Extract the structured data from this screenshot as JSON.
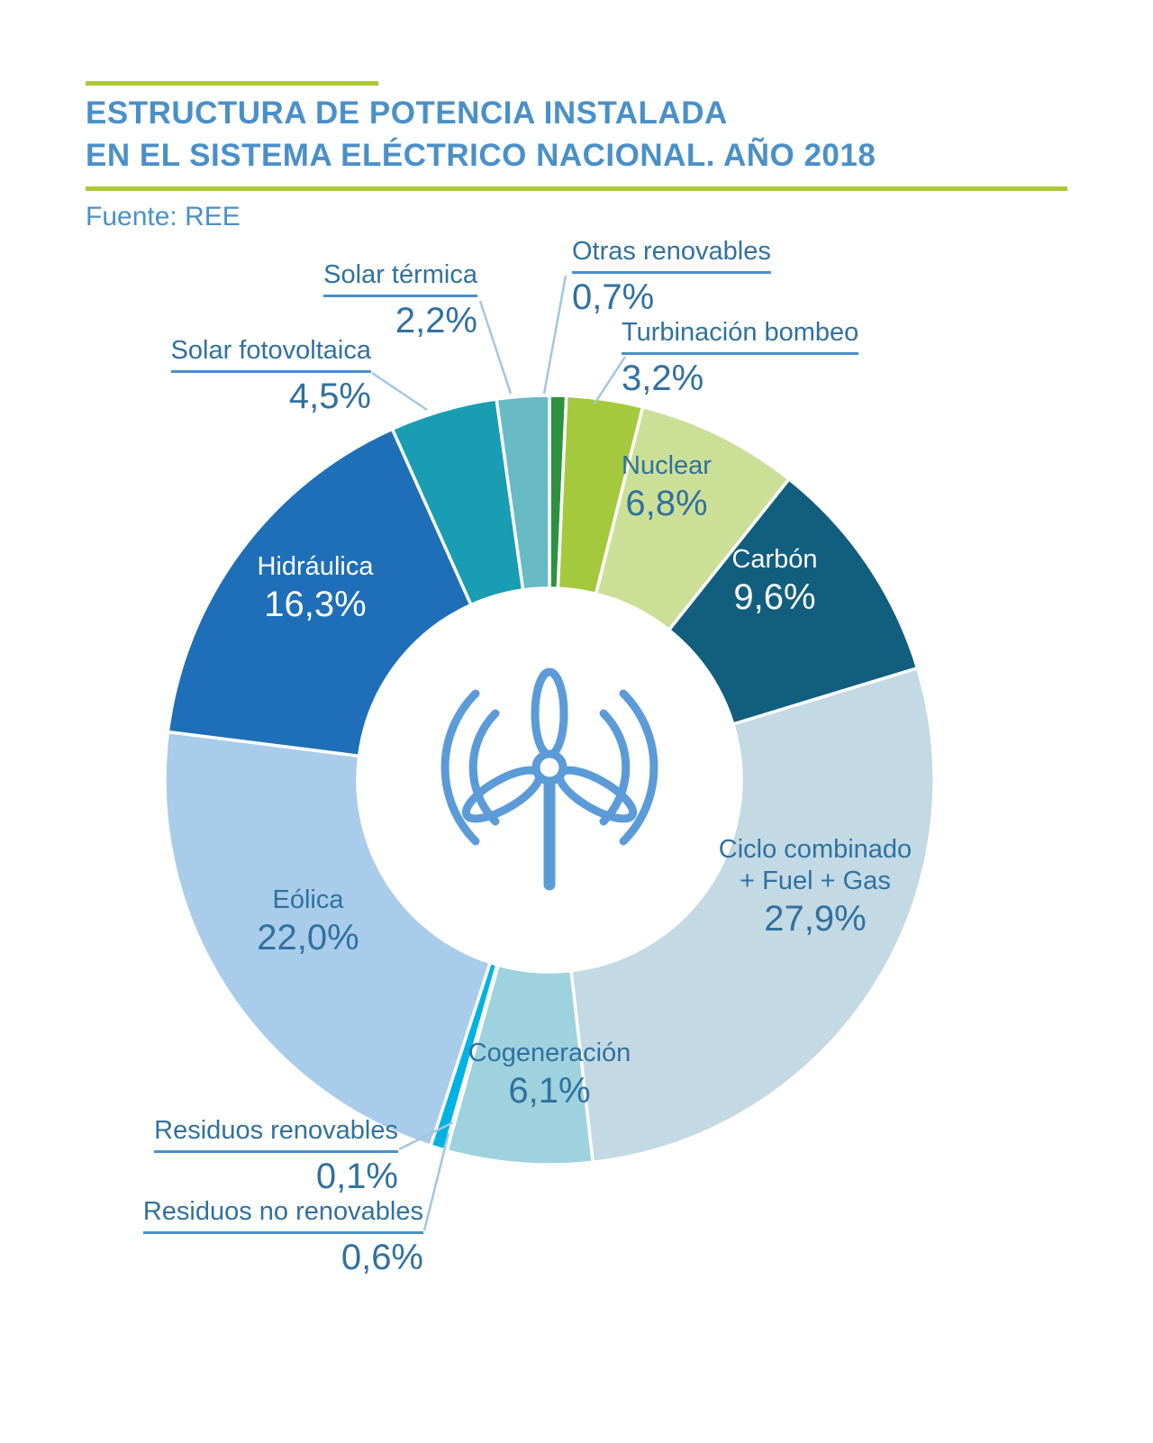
{
  "header": {
    "title_line1": "ESTRUCTURA DE POTENCIA INSTALADA",
    "title_line2": "EN EL SISTEMA ELÉCTRICO NACIONAL. AÑO 2018",
    "source": "Fuente: REE",
    "accent_color": "#abc838",
    "title_color": "#4a90c8"
  },
  "chart_data": {
    "type": "pie",
    "subtype": "donut",
    "title": "Estructura de potencia instalada en el sistema eléctrico nacional. Año 2018",
    "source": "Fuente: REE",
    "start": "top",
    "direction": "clockwise",
    "inner_radius_pct": 50,
    "label_text_color": "#30719f",
    "gap_color": "#ffffff",
    "segments": [
      {
        "label": "Otras renovables",
        "value": 0.7,
        "pct_label": "0,7%",
        "color": "#2e9140",
        "label_placement": "outside"
      },
      {
        "label": "Turbinación bombeo",
        "value": 3.2,
        "pct_label": "3,2%",
        "color": "#a5c93c",
        "label_placement": "outside"
      },
      {
        "label": "Nuclear",
        "value": 6.8,
        "pct_label": "6,8%",
        "color": "#cbdf96",
        "label_placement": "inside"
      },
      {
        "label": "Carbón",
        "value": 9.6,
        "pct_label": "9,6%",
        "color": "#115e7f",
        "label_placement": "inside",
        "text_color": "#ffffff"
      },
      {
        "label": "Ciclo combinado + Fuel + Gas",
        "label_line1": "Ciclo combinado",
        "label_line2": "+ Fuel + Gas",
        "value": 27.9,
        "pct_label": "27,9%",
        "color": "#c3d9e3",
        "label_placement": "inside"
      },
      {
        "label": "Cogeneración",
        "value": 6.1,
        "pct_label": "6,1%",
        "color": "#9dd2de",
        "label_placement": "inside"
      },
      {
        "label": "Residuos renovables",
        "value": 0.1,
        "pct_label": "0,1%",
        "color": "#0c7da0",
        "label_placement": "outside"
      },
      {
        "label": "Residuos no renovables",
        "value": 0.6,
        "pct_label": "0,6%",
        "color": "#00b3e3",
        "label_placement": "outside"
      },
      {
        "label": "Eólica",
        "value": 22.0,
        "pct_label": "22,0%",
        "color": "#a9cceb",
        "label_placement": "inside"
      },
      {
        "label": "Hidráulica",
        "value": 16.3,
        "pct_label": "16,3%",
        "color": "#1e6fb8",
        "label_placement": "inside",
        "text_color": "#ffffff"
      },
      {
        "label": "Solar fotovoltaica",
        "value": 4.5,
        "pct_label": "4,5%",
        "color": "#199db2",
        "label_placement": "outside"
      },
      {
        "label": "Solar térmica",
        "value": 2.2,
        "pct_label": "2,2%",
        "color": "#68bac4",
        "label_placement": "outside"
      }
    ]
  }
}
